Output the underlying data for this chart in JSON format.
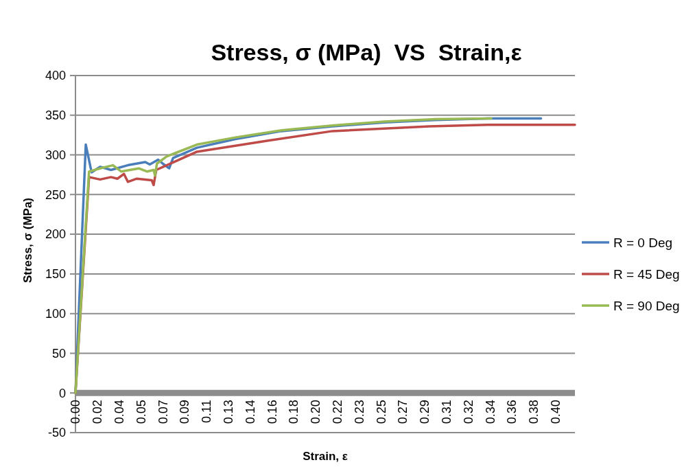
{
  "chart_data": {
    "type": "line",
    "title": "Stress, σ (MPa)  VS  Strain,ε",
    "xlabel": "Strain, ε",
    "ylabel": "Stress, σ (MPa)",
    "xlim": [
      0,
      0.412
    ],
    "ylim": [
      -50,
      400
    ],
    "yticks": [
      -50,
      0,
      50,
      100,
      150,
      200,
      250,
      300,
      350,
      400
    ],
    "xticks": [
      {
        "value": 0,
        "label": "0.00"
      },
      {
        "value": 0.018,
        "label": "0.02"
      },
      {
        "value": 0.036,
        "label": "0.04"
      },
      {
        "value": 0.054,
        "label": "0.05"
      },
      {
        "value": 0.072,
        "label": "0.07"
      },
      {
        "value": 0.09,
        "label": "0.09"
      },
      {
        "value": 0.108,
        "label": "0.11"
      },
      {
        "value": 0.126,
        "label": "0.13"
      },
      {
        "value": 0.144,
        "label": "0.14"
      },
      {
        "value": 0.162,
        "label": "0.16"
      },
      {
        "value": 0.18,
        "label": "0.18"
      },
      {
        "value": 0.198,
        "label": "0.20"
      },
      {
        "value": 0.216,
        "label": "0.22"
      },
      {
        "value": 0.234,
        "label": "0.23"
      },
      {
        "value": 0.252,
        "label": "0.25"
      },
      {
        "value": 0.27,
        "label": "0.27"
      },
      {
        "value": 0.288,
        "label": "0.29"
      },
      {
        "value": 0.306,
        "label": "0.31"
      },
      {
        "value": 0.324,
        "label": "0.32"
      },
      {
        "value": 0.342,
        "label": "0.34"
      },
      {
        "value": 0.36,
        "label": "0.36"
      },
      {
        "value": 0.378,
        "label": "0.38"
      },
      {
        "value": 0.396,
        "label": "0.40"
      }
    ],
    "grid": "y",
    "legend": "right",
    "marker": "none",
    "line_style": "solid",
    "series": [
      {
        "name": "R = 0 Deg",
        "color": "#4a7ebb",
        "x": [
          0,
          0.0085,
          0.0133,
          0.0203,
          0.0293,
          0.0432,
          0.0576,
          0.0613,
          0.0682,
          0.072,
          0.0773,
          0.0805,
          0.1002,
          0.132,
          0.17,
          0.212,
          0.255,
          0.297,
          0.34,
          0.384
        ],
        "values": [
          0,
          313,
          278,
          285,
          281,
          287,
          291,
          288,
          294,
          289,
          283,
          296,
          309,
          320,
          330,
          336,
          341,
          344,
          346,
          346
        ]
      },
      {
        "name": "R = 45 Deg",
        "color": "#be4b48",
        "x": [
          0,
          0.0112,
          0.0203,
          0.0293,
          0.0346,
          0.04,
          0.0432,
          0.0506,
          0.0629,
          0.0645,
          0.0666,
          0.0826,
          0.1002,
          0.159,
          0.212,
          0.292,
          0.34,
          0.412
        ],
        "values": [
          0,
          272,
          269,
          272,
          270,
          276,
          266,
          270,
          268,
          262,
          281,
          292,
          304,
          318,
          330,
          336,
          338,
          338
        ]
      },
      {
        "name": "R = 90 Deg",
        "color": "#98b954",
        "x": [
          0,
          0.0112,
          0.0203,
          0.0309,
          0.0378,
          0.0522,
          0.0592,
          0.0645,
          0.0656,
          0.0672,
          0.0752,
          0.1002,
          0.132,
          0.17,
          0.212,
          0.255,
          0.297,
          0.343
        ],
        "values": [
          0,
          279,
          283,
          287,
          279,
          283,
          279,
          281,
          274,
          289,
          298,
          313,
          322,
          331,
          337,
          342,
          345,
          346
        ]
      }
    ]
  }
}
